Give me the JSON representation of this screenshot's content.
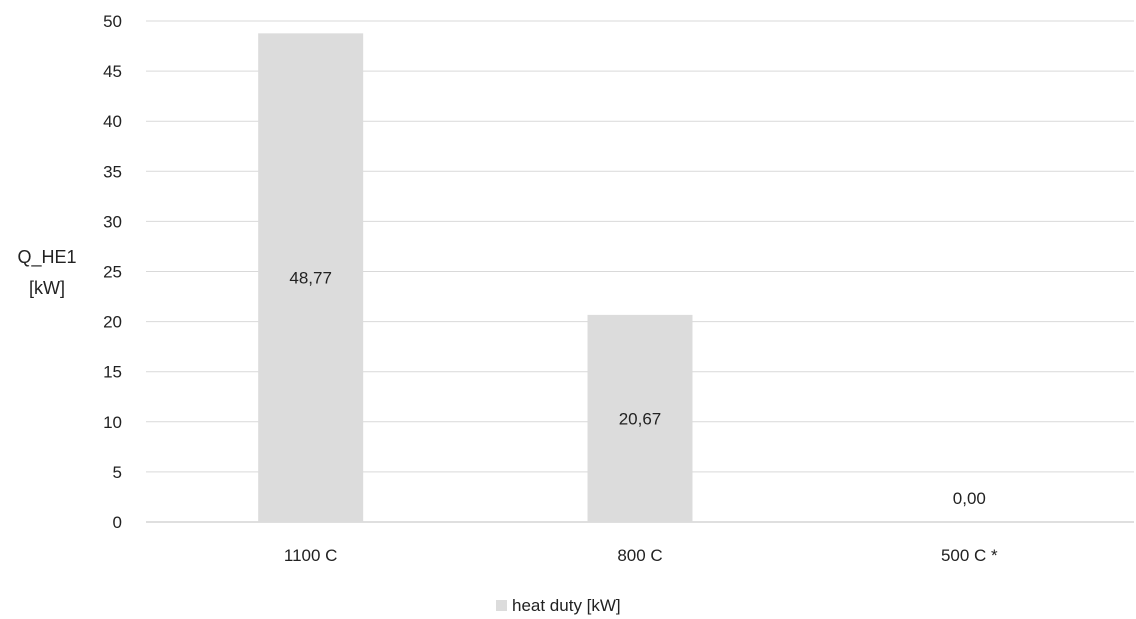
{
  "chart_data": {
    "type": "bar",
    "categories": [
      "1100 C",
      "800 C",
      "500 C *"
    ],
    "series": [
      {
        "name": "heat duty [kW]",
        "values": [
          48.77,
          20.67,
          0.0
        ],
        "data_labels": [
          "48,77",
          "20,67",
          "0,00"
        ],
        "color": "#dcdcdc"
      }
    ],
    "ylabel_lines": [
      "Q_HE1",
      "[kW]"
    ],
    "ylim": [
      0,
      50
    ],
    "yticks": [
      0,
      5,
      10,
      15,
      20,
      25,
      30,
      35,
      40,
      45,
      50
    ],
    "grid": true,
    "gridline_color": "#d9d9d9",
    "legend_position": "bottom"
  }
}
